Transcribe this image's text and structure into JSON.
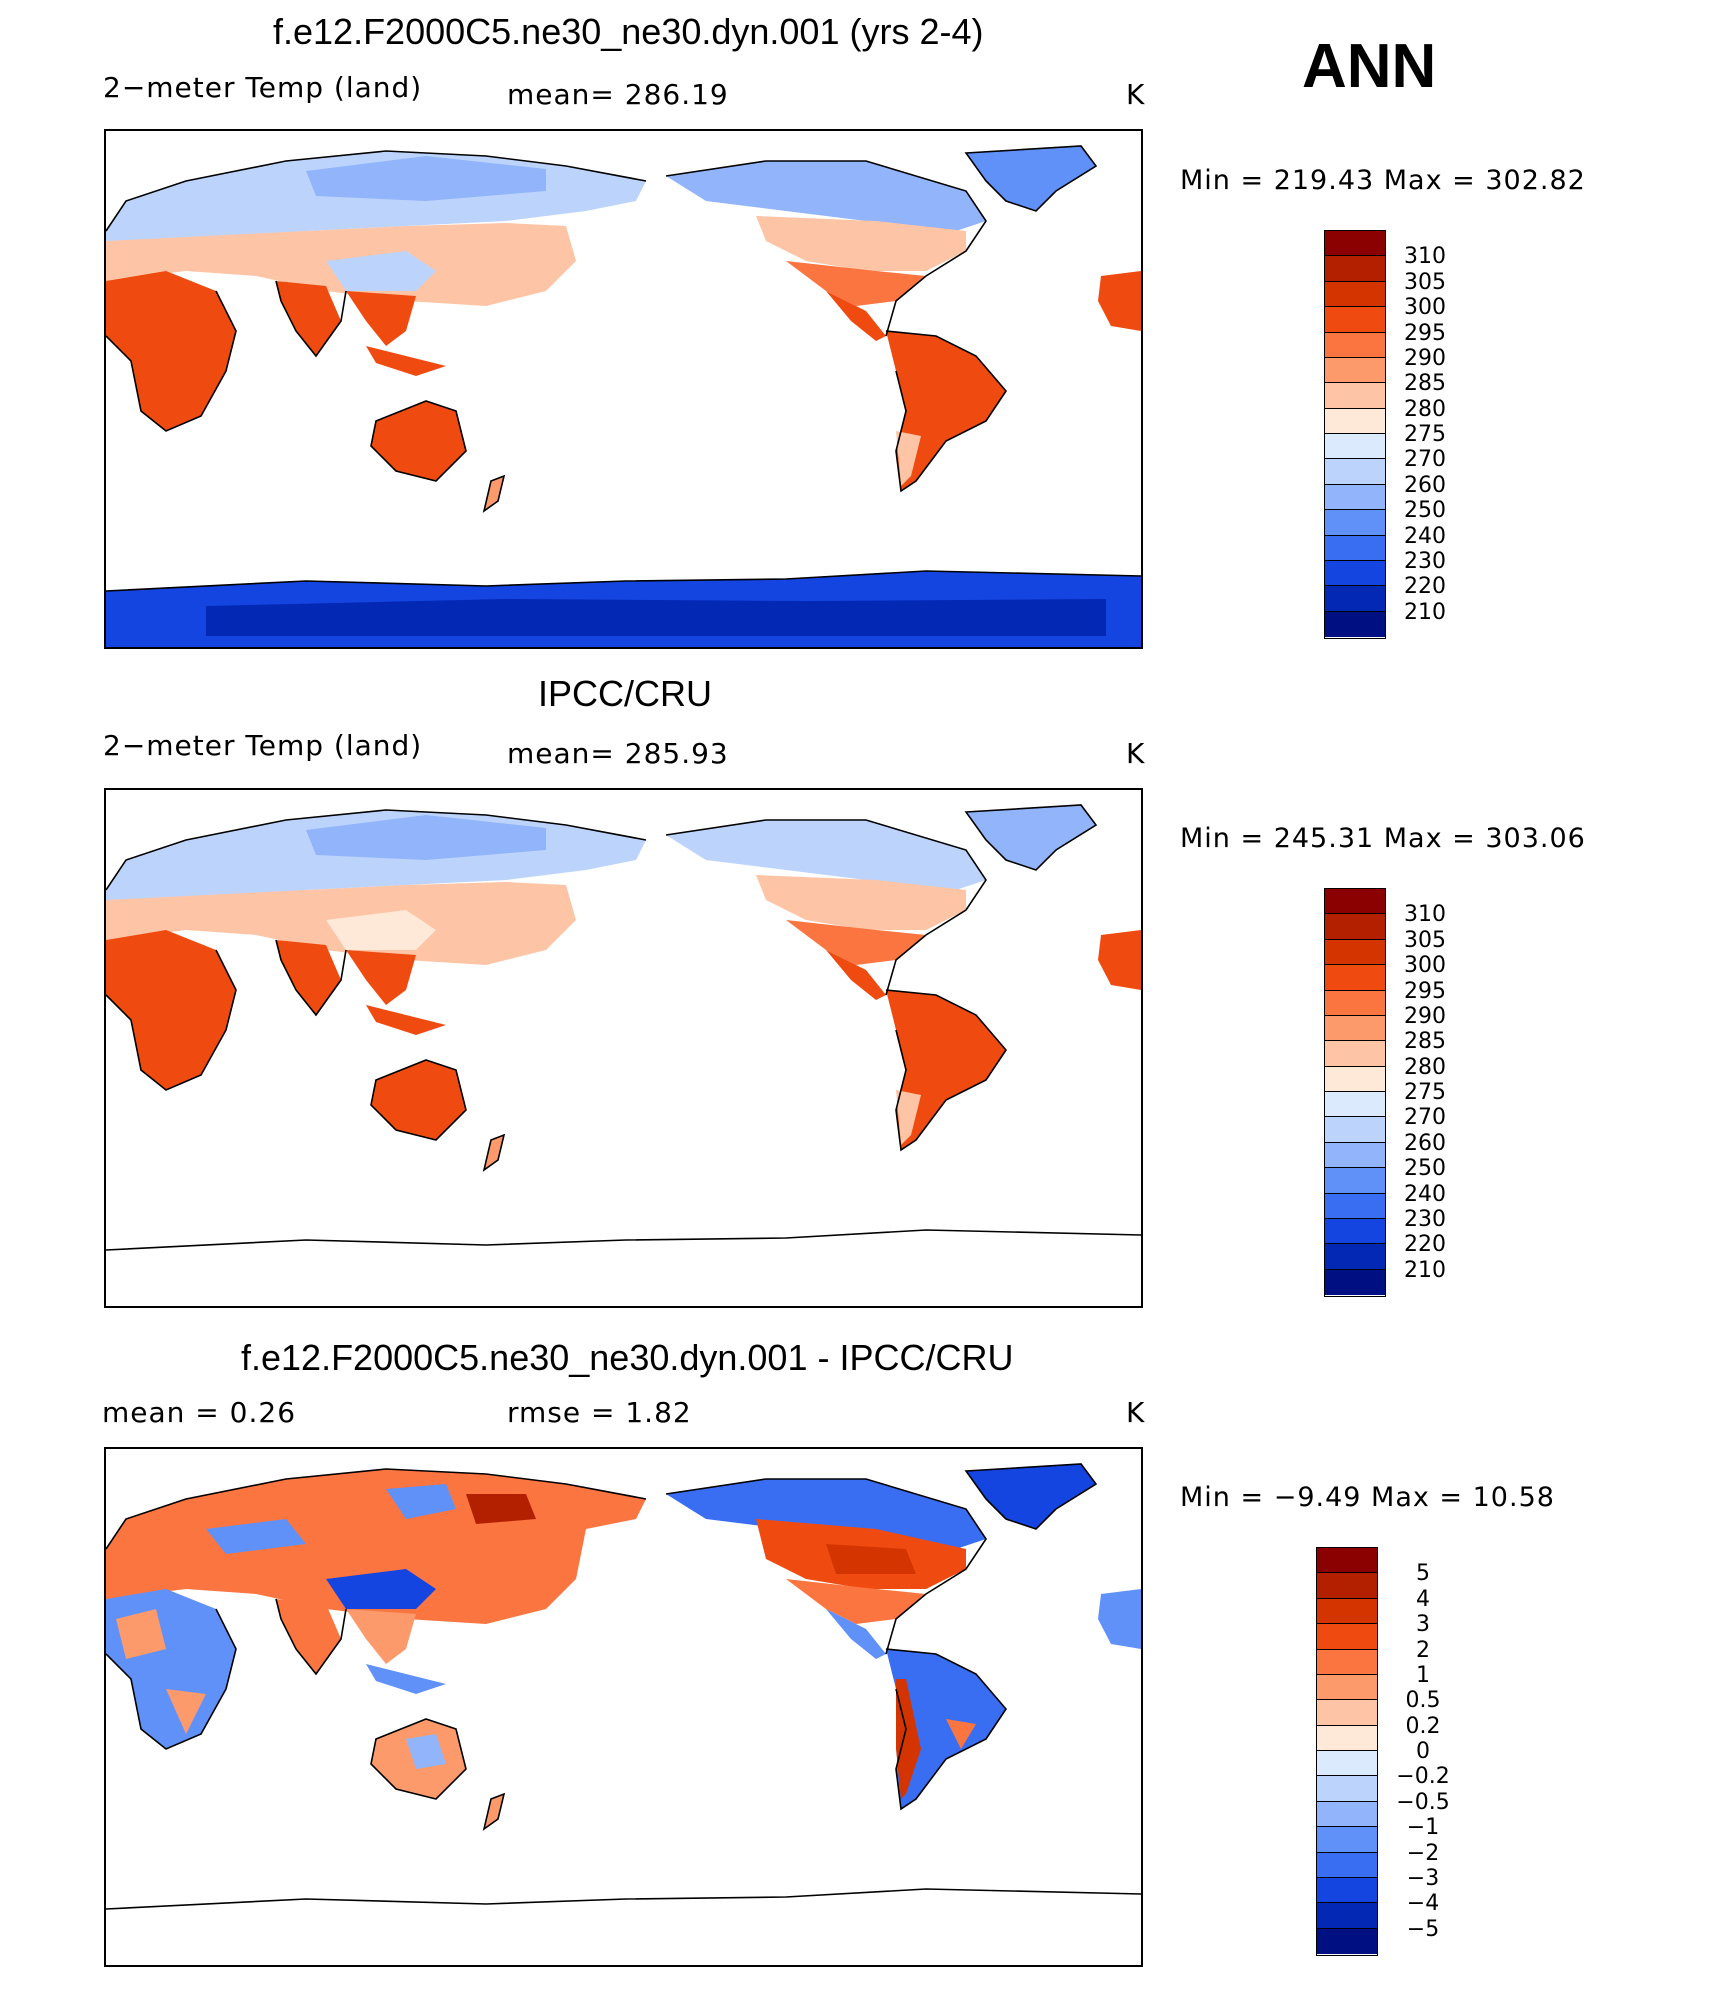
{
  "season": "ANN",
  "panels": [
    {
      "title": "f.e12.F2000C5.ne30_ne30.dyn.001 (yrs 2-4)",
      "variable": "2−meter Temp (land)",
      "stat": "mean=  286.19",
      "units": "K",
      "range": "Min  =  219.43  Max  =  302.82",
      "map_kind": "model",
      "colorbar": {
        "labels": [
          "310",
          "305",
          "300",
          "295",
          "290",
          "285",
          "280",
          "275",
          "270",
          "260",
          "250",
          "240",
          "230",
          "220",
          "210"
        ],
        "colors": [
          "#8b0000",
          "#b22000",
          "#d43500",
          "#ef4b10",
          "#fb7541",
          "#fc9a6c",
          "#fdc5a5",
          "#fee8d8",
          "#dbeafd",
          "#bcd4fc",
          "#92b4fb",
          "#6091f8",
          "#3a6ef2",
          "#1545e0",
          "#0328b4",
          "#000f82"
        ]
      }
    },
    {
      "title": "IPCC/CRU",
      "variable": "2−meter Temp (land)",
      "stat": "mean=  285.93",
      "units": "K",
      "range": "Min  =  245.31  Max  =  303.06",
      "map_kind": "obs",
      "colorbar": {
        "labels": [
          "310",
          "305",
          "300",
          "295",
          "290",
          "285",
          "280",
          "275",
          "270",
          "260",
          "250",
          "240",
          "230",
          "220",
          "210"
        ],
        "colors": [
          "#8b0000",
          "#b22000",
          "#d43500",
          "#ef4b10",
          "#fb7541",
          "#fc9a6c",
          "#fdc5a5",
          "#fee8d8",
          "#dbeafd",
          "#bcd4fc",
          "#92b4fb",
          "#6091f8",
          "#3a6ef2",
          "#1545e0",
          "#0328b4",
          "#000f82"
        ]
      }
    },
    {
      "title": "f.e12.F2000C5.ne30_ne30.dyn.001 - IPCC/CRU",
      "stat_left": "mean =     0.26",
      "stat": "rmse =     1.82",
      "units": "K",
      "range": "Min  =    −9.49  Max  =     10.58",
      "map_kind": "diff",
      "colorbar": {
        "labels": [
          "5",
          "4",
          "3",
          "2",
          "1",
          "0.5",
          "0.2",
          "0",
          "−0.2",
          "−0.5",
          "−1",
          "−2",
          "−3",
          "−4",
          "−5"
        ],
        "colors": [
          "#8b0000",
          "#b22000",
          "#d43500",
          "#ef4b10",
          "#fb7541",
          "#fc9a6c",
          "#fdc5a5",
          "#fee8d8",
          "#dbeafd",
          "#bcd4fc",
          "#92b4fb",
          "#6091f8",
          "#3a6ef2",
          "#1545e0",
          "#0328b4",
          "#000f82"
        ]
      }
    }
  ]
}
